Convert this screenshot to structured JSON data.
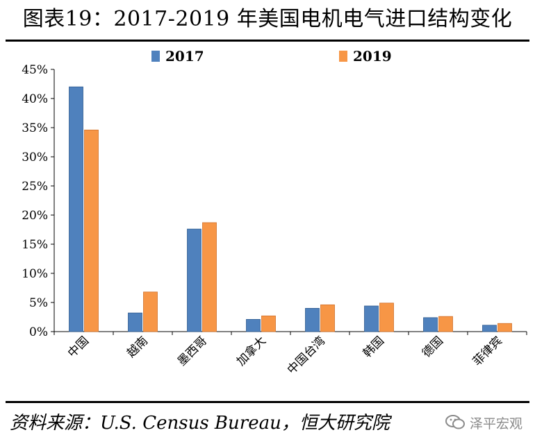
{
  "title": "图表19：2017-2019 年美国电机电气进口结构变化",
  "source": "资料来源：U.S. Census Bureau，恒大研究院",
  "watermark": "泽平宏观",
  "colors": {
    "series_2017": "#4f81bd",
    "series_2017_dark": "#2f5b8f",
    "series_2019": "#f79646",
    "series_2019_dark": "#d0702a",
    "axis": "#000000"
  },
  "chart_data": {
    "type": "bar",
    "categories": [
      "中国",
      "越南",
      "墨西哥",
      "加拿大",
      "中国台湾",
      "韩国",
      "德国",
      "菲律宾"
    ],
    "series": [
      {
        "name": "2017",
        "values": [
          42.0,
          3.2,
          17.6,
          2.1,
          4.0,
          4.4,
          2.4,
          1.1
        ]
      },
      {
        "name": "2019",
        "values": [
          34.6,
          6.8,
          18.7,
          2.7,
          4.6,
          4.9,
          2.6,
          1.4
        ]
      }
    ],
    "yticks": [
      "0%",
      "5%",
      "10%",
      "15%",
      "20%",
      "25%",
      "30%",
      "35%",
      "40%",
      "45%"
    ],
    "ylim": [
      0,
      45
    ],
    "legend": "top",
    "grid": false
  }
}
